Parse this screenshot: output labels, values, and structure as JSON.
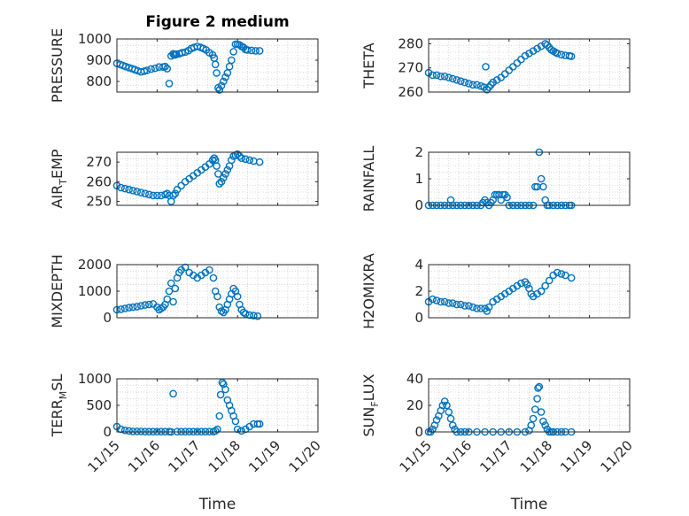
{
  "chart_data": [
    {
      "type": "scatter",
      "title": "Figure 2 medium",
      "ylabel": "PRESSURE",
      "xlim": [
        0,
        5
      ],
      "ylim": [
        750,
        1000
      ],
      "yticks": [
        800,
        900,
        1000
      ],
      "x": [
        0.0,
        0.08,
        0.15,
        0.22,
        0.3,
        0.38,
        0.45,
        0.52,
        0.6,
        0.68,
        0.75,
        0.85,
        0.95,
        1.05,
        1.15,
        1.2,
        1.25,
        1.3,
        1.35,
        1.4,
        1.42,
        1.45,
        1.48,
        1.55,
        1.62,
        1.7,
        1.78,
        1.85,
        1.92,
        2.0,
        2.08,
        2.15,
        2.22,
        2.3,
        2.38,
        2.42,
        2.45,
        2.48,
        2.52,
        2.55,
        2.6,
        2.65,
        2.7,
        2.75,
        2.8,
        2.85,
        2.9,
        2.95,
        3.0,
        3.05,
        3.1,
        3.15,
        3.2,
        3.25,
        3.35,
        3.45,
        3.55
      ],
      "y": [
        885,
        880,
        875,
        870,
        865,
        860,
        855,
        850,
        845,
        848,
        852,
        858,
        862,
        868,
        868,
        870,
        860,
        790,
        920,
        930,
        925,
        925,
        928,
        930,
        935,
        938,
        945,
        955,
        960,
        965,
        960,
        955,
        948,
        935,
        925,
        910,
        880,
        840,
        770,
        760,
        780,
        800,
        820,
        840,
        870,
        900,
        940,
        975,
        975,
        972,
        965,
        960,
        950,
        948,
        946,
        944,
        944
      ],
      "color": "#0072BD"
    },
    {
      "type": "scatter",
      "ylabel": "THETA",
      "xlim": [
        0,
        5
      ],
      "ylim": [
        260,
        282
      ],
      "yticks": [
        260,
        270,
        280
      ],
      "x": [
        0.0,
        0.1,
        0.2,
        0.3,
        0.4,
        0.5,
        0.6,
        0.7,
        0.8,
        0.9,
        1.0,
        1.1,
        1.2,
        1.3,
        1.38,
        1.42,
        1.45,
        1.5,
        1.55,
        1.6,
        1.7,
        1.8,
        1.9,
        2.0,
        2.1,
        2.2,
        2.3,
        2.4,
        2.5,
        2.6,
        2.7,
        2.8,
        2.9,
        2.95,
        3.0,
        3.05,
        3.1,
        3.15,
        3.2,
        3.3,
        3.4,
        3.5,
        3.55
      ],
      "y": [
        268,
        267,
        267,
        266.5,
        266.5,
        266,
        265.5,
        265,
        264.5,
        264,
        263.5,
        263,
        263,
        262.5,
        262,
        270.5,
        261,
        262,
        263,
        264,
        265,
        266,
        267.5,
        269,
        270.5,
        272,
        273.5,
        275,
        276,
        277,
        278,
        279,
        280,
        279.5,
        278.5,
        277.5,
        277,
        276.5,
        276,
        275.5,
        275.2,
        275,
        274.8
      ],
      "color": "#0072BD"
    },
    {
      "type": "scatter",
      "ylabel": "AIR_TEMP",
      "xlim": [
        0,
        5
      ],
      "ylim": [
        248,
        275
      ],
      "yticks": [
        250,
        260,
        270
      ],
      "x": [
        0.0,
        0.1,
        0.2,
        0.3,
        0.4,
        0.5,
        0.6,
        0.7,
        0.8,
        0.9,
        1.0,
        1.1,
        1.2,
        1.25,
        1.3,
        1.35,
        1.4,
        1.45,
        1.5,
        1.6,
        1.7,
        1.8,
        1.9,
        2.0,
        2.1,
        2.2,
        2.3,
        2.38,
        2.42,
        2.45,
        2.48,
        2.52,
        2.55,
        2.6,
        2.65,
        2.7,
        2.75,
        2.8,
        2.85,
        2.9,
        2.95,
        3.0,
        3.05,
        3.1,
        3.2,
        3.3,
        3.4,
        3.55
      ],
      "y": [
        258,
        257,
        256.5,
        256,
        255.5,
        255,
        254.5,
        254,
        253.5,
        253,
        253,
        253,
        253.5,
        254,
        253,
        250,
        253,
        254,
        256,
        258,
        260,
        261.5,
        263,
        264.5,
        266,
        267.5,
        269,
        271,
        272,
        271,
        268,
        264,
        259,
        260,
        262,
        264,
        266,
        268,
        271,
        273,
        273.5,
        274,
        273,
        272,
        271.5,
        271,
        270.5,
        270
      ],
      "color": "#0072BD"
    },
    {
      "type": "scatter",
      "ylabel": "RAINFALL",
      "xlim": [
        0,
        5
      ],
      "ylim": [
        0,
        2
      ],
      "yticks": [
        0,
        1,
        2
      ],
      "x": [
        0.0,
        0.1,
        0.2,
        0.3,
        0.4,
        0.5,
        0.55,
        0.6,
        0.7,
        0.8,
        0.9,
        1.0,
        1.1,
        1.2,
        1.3,
        1.35,
        1.4,
        1.45,
        1.5,
        1.55,
        1.6,
        1.65,
        1.7,
        1.75,
        1.8,
        1.85,
        1.9,
        1.95,
        2.0,
        2.1,
        2.2,
        2.3,
        2.4,
        2.5,
        2.6,
        2.65,
        2.7,
        2.75,
        2.8,
        2.85,
        2.9,
        2.95,
        3.0,
        3.1,
        3.2,
        3.3,
        3.4,
        3.5,
        3.55
      ],
      "y": [
        0,
        0,
        0,
        0,
        0,
        0,
        0.2,
        0,
        0,
        0,
        0,
        0,
        0,
        0,
        0,
        0.1,
        0.2,
        0.1,
        0,
        0.1,
        0.2,
        0.4,
        0.4,
        0.4,
        0.2,
        0.4,
        0.4,
        0.3,
        0,
        0,
        0,
        0,
        0,
        0,
        0,
        0.7,
        0.7,
        2.0,
        1.0,
        0.7,
        0.2,
        0,
        0,
        0,
        0,
        0,
        0,
        0,
        0
      ],
      "color": "#0072BD"
    },
    {
      "type": "scatter",
      "ylabel": "MIXDEPTH",
      "xlim": [
        0,
        5
      ],
      "ylim": [
        0,
        2000
      ],
      "yticks": [
        0,
        1000,
        2000
      ],
      "x": [
        0.0,
        0.1,
        0.2,
        0.3,
        0.4,
        0.5,
        0.6,
        0.7,
        0.8,
        0.9,
        1.0,
        1.05,
        1.1,
        1.15,
        1.2,
        1.25,
        1.3,
        1.35,
        1.4,
        1.45,
        1.5,
        1.55,
        1.6,
        1.7,
        1.8,
        1.9,
        2.0,
        2.1,
        2.2,
        2.3,
        2.4,
        2.45,
        2.5,
        2.55,
        2.6,
        2.65,
        2.7,
        2.75,
        2.8,
        2.85,
        2.9,
        2.95,
        3.0,
        3.05,
        3.1,
        3.15,
        3.2,
        3.3,
        3.4,
        3.5
      ],
      "y": [
        300,
        320,
        350,
        380,
        400,
        420,
        450,
        480,
        500,
        520,
        400,
        300,
        350,
        400,
        500,
        700,
        1000,
        1300,
        600,
        1100,
        1500,
        1700,
        1800,
        1900,
        1700,
        1600,
        1500,
        1600,
        1700,
        1800,
        1500,
        1000,
        800,
        400,
        250,
        200,
        300,
        500,
        700,
        900,
        1100,
        1000,
        800,
        500,
        300,
        200,
        150,
        100,
        80,
        60
      ],
      "color": "#0072BD"
    },
    {
      "type": "scatter",
      "ylabel": "H2OMIXRA",
      "xlim": [
        0,
        5
      ],
      "ylim": [
        0,
        4
      ],
      "yticks": [
        0,
        2,
        4
      ],
      "x": [
        0.0,
        0.1,
        0.2,
        0.3,
        0.4,
        0.5,
        0.6,
        0.7,
        0.8,
        0.9,
        1.0,
        1.1,
        1.2,
        1.3,
        1.4,
        1.45,
        1.5,
        1.6,
        1.7,
        1.8,
        1.9,
        2.0,
        2.1,
        2.2,
        2.3,
        2.4,
        2.45,
        2.5,
        2.55,
        2.6,
        2.7,
        2.8,
        2.9,
        3.0,
        3.1,
        3.2,
        3.3,
        3.4,
        3.55
      ],
      "y": [
        1.2,
        1.4,
        1.3,
        1.2,
        1.2,
        1.1,
        1.1,
        1.0,
        1.0,
        0.9,
        0.9,
        0.8,
        0.7,
        0.7,
        0.7,
        0.5,
        0.8,
        1.2,
        1.4,
        1.6,
        1.8,
        2.0,
        2.2,
        2.4,
        2.6,
        2.7,
        2.5,
        2.2,
        1.8,
        1.6,
        1.8,
        2.0,
        2.4,
        2.8,
        3.2,
        3.4,
        3.3,
        3.2,
        3.0
      ],
      "color": "#0072BD"
    },
    {
      "type": "scatter",
      "ylabel": "TERR_MSL",
      "xlim": [
        0,
        5
      ],
      "ylim": [
        0,
        1000
      ],
      "yticks": [
        0,
        500,
        1000
      ],
      "x": [
        0.0,
        0.1,
        0.2,
        0.3,
        0.4,
        0.5,
        0.6,
        0.7,
        0.8,
        0.9,
        1.0,
        1.1,
        1.2,
        1.3,
        1.35,
        1.4,
        1.5,
        1.6,
        1.7,
        1.8,
        1.9,
        2.0,
        2.1,
        2.2,
        2.3,
        2.4,
        2.45,
        2.5,
        2.55,
        2.58,
        2.62,
        2.65,
        2.7,
        2.75,
        2.8,
        2.85,
        2.9,
        2.95,
        3.0,
        3.1,
        3.2,
        3.3,
        3.4,
        3.5,
        3.55
      ],
      "y": [
        100,
        50,
        30,
        20,
        10,
        10,
        10,
        5,
        5,
        5,
        5,
        5,
        5,
        5,
        0,
        720,
        5,
        5,
        5,
        5,
        5,
        5,
        5,
        5,
        5,
        5,
        20,
        50,
        300,
        700,
        930,
        900,
        800,
        600,
        500,
        400,
        300,
        200,
        50,
        20,
        50,
        100,
        150,
        150,
        150
      ],
      "color": "#0072BD"
    },
    {
      "type": "scatter",
      "ylabel": "SUN_FLUX",
      "xlim": [
        0,
        5
      ],
      "ylim": [
        0,
        40
      ],
      "yticks": [
        0,
        20,
        40
      ],
      "x": [
        0.0,
        0.05,
        0.1,
        0.15,
        0.2,
        0.25,
        0.3,
        0.35,
        0.4,
        0.45,
        0.5,
        0.55,
        0.6,
        0.65,
        0.7,
        0.8,
        0.9,
        1.0,
        1.2,
        1.4,
        1.6,
        1.8,
        2.0,
        2.2,
        2.4,
        2.5,
        2.55,
        2.6,
        2.65,
        2.7,
        2.72,
        2.75,
        2.8,
        2.85,
        2.9,
        2.95,
        3.0,
        3.05,
        3.1,
        3.2,
        3.3,
        3.4,
        3.55
      ],
      "y": [
        0,
        0,
        2,
        5,
        9,
        12,
        16,
        20,
        23,
        20,
        15,
        10,
        5,
        2,
        0,
        0,
        0,
        0,
        0,
        0,
        0,
        0,
        0,
        0,
        0,
        1,
        5,
        10,
        17,
        25,
        33,
        34,
        15,
        8,
        5,
        2,
        0,
        0,
        0,
        0,
        0,
        0,
        0
      ],
      "color": "#0072BD"
    }
  ],
  "shared_x": {
    "label": "Time",
    "ticks": [
      0,
      1,
      2,
      3,
      4,
      5
    ],
    "tick_labels": [
      "11/15",
      "11/16",
      "11/17",
      "11/18",
      "11/19",
      "11/20"
    ]
  }
}
